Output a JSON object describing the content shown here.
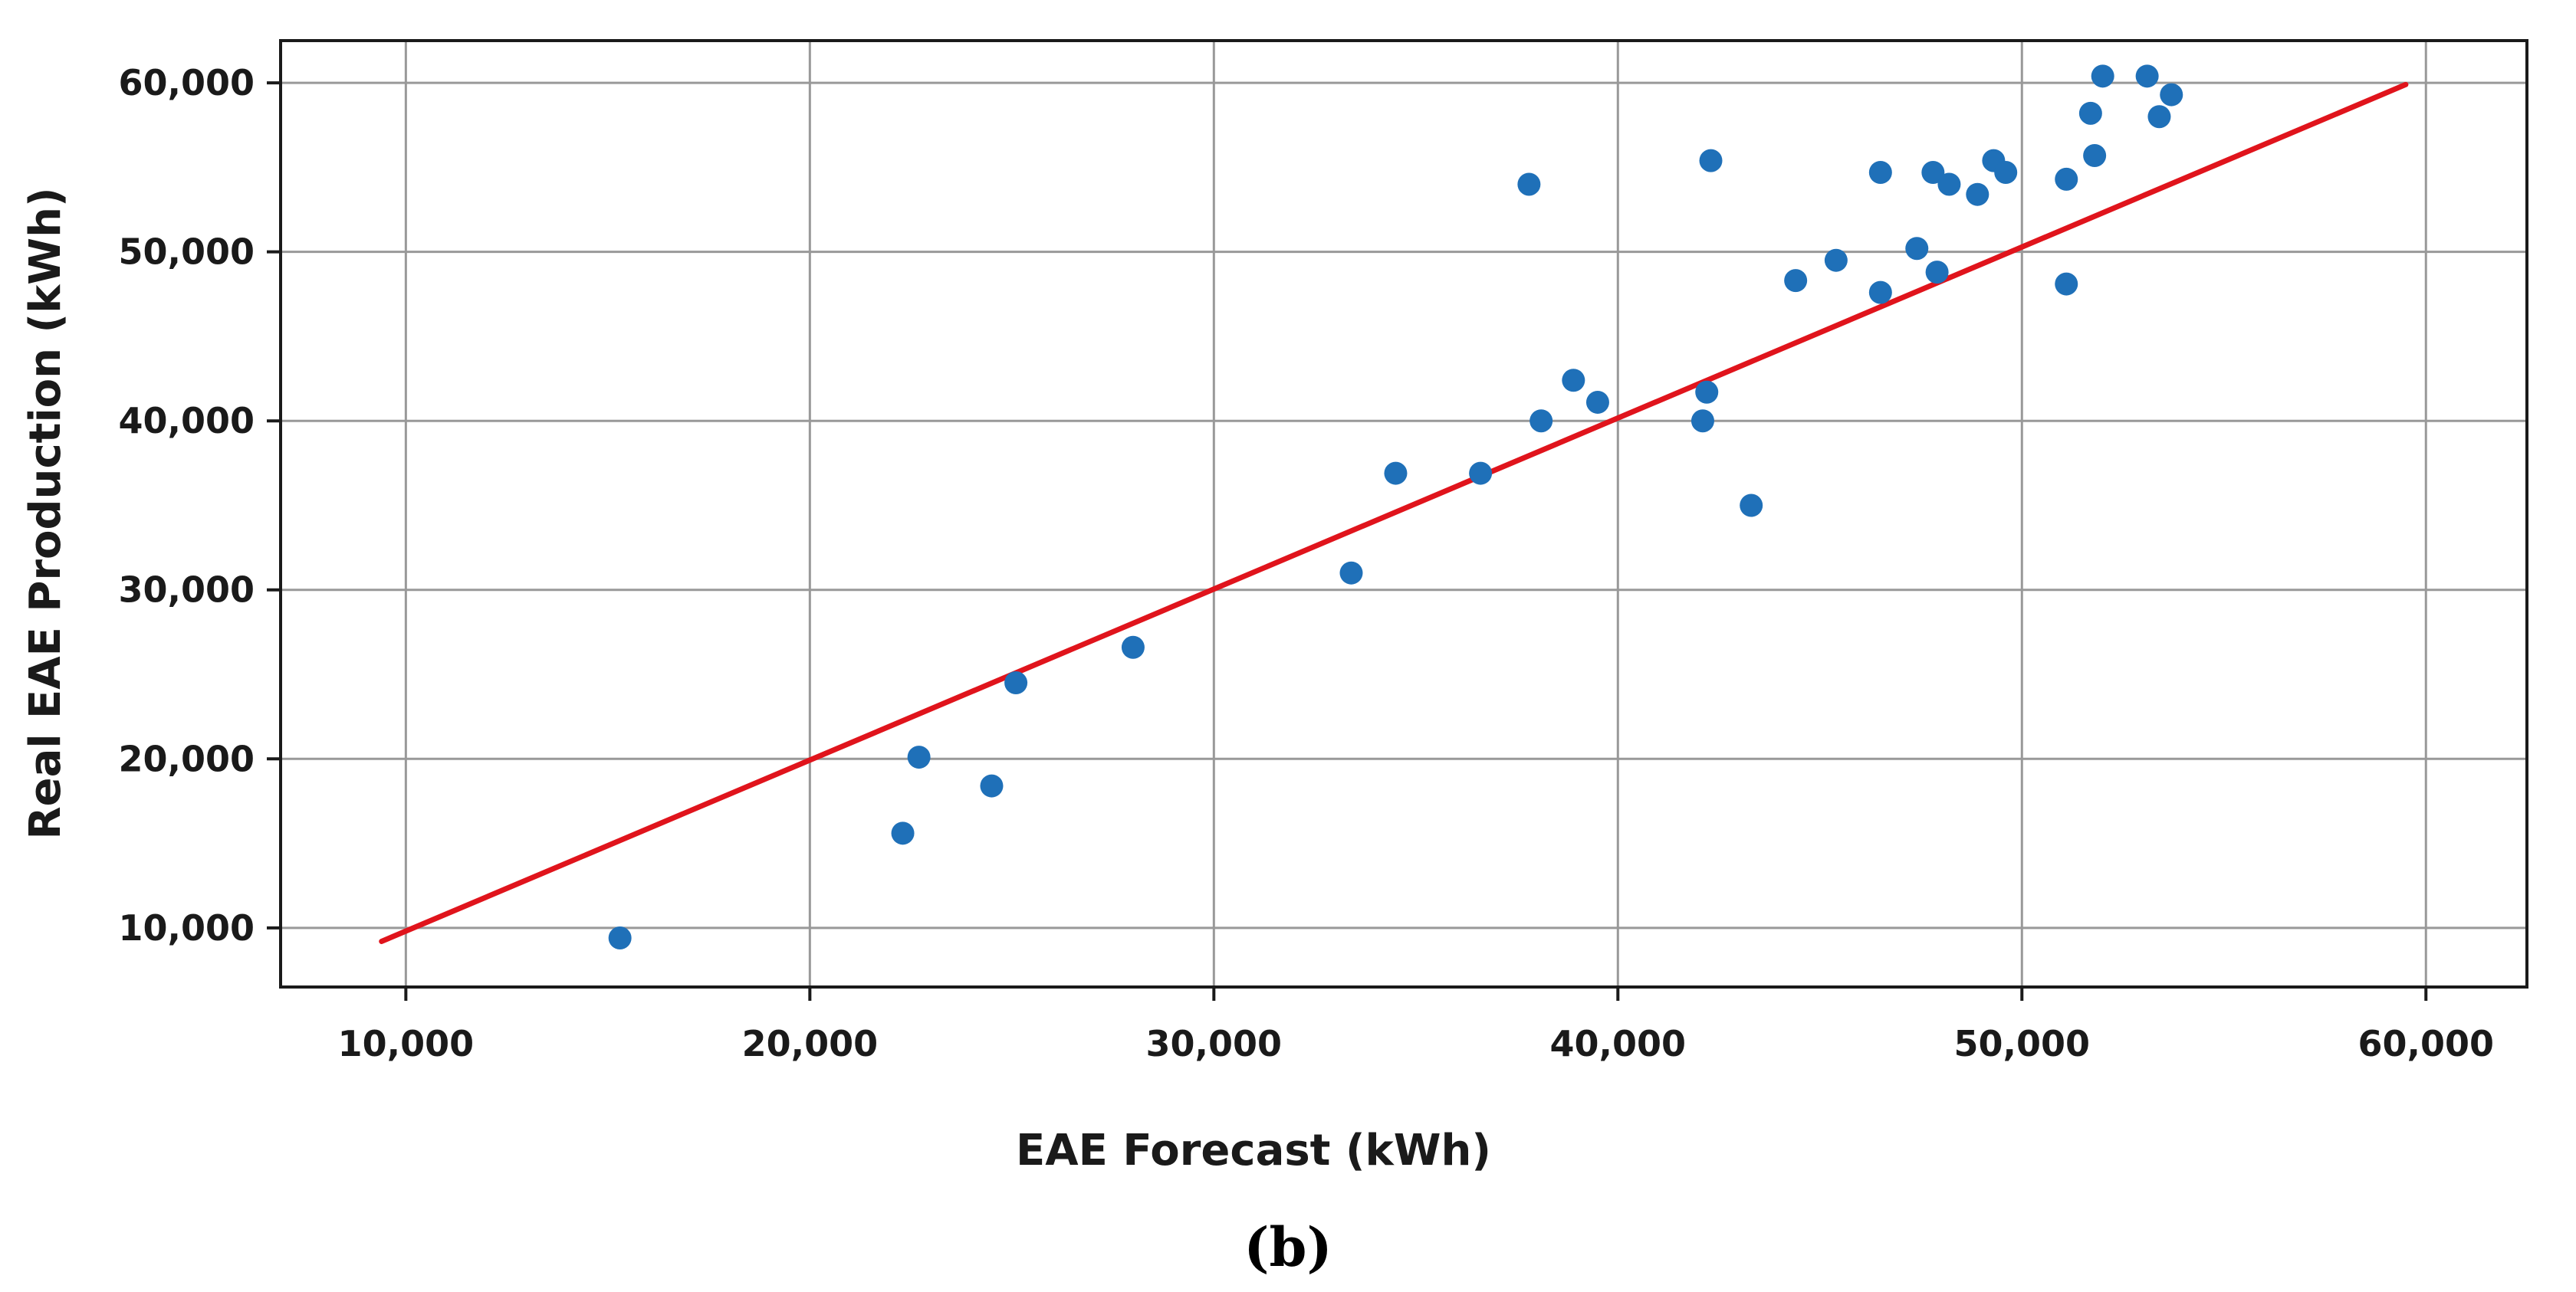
{
  "chart_data": {
    "type": "scatter",
    "title": "",
    "xlabel": "EAE Forecast (kWh)",
    "ylabel": "Real EAE Production (kWh)",
    "caption": "(b)",
    "xlim": [
      6900,
      62500
    ],
    "ylim": [
      6500,
      62500
    ],
    "x_ticks": [
      10000,
      20000,
      30000,
      40000,
      50000,
      60000
    ],
    "x_tick_labels": [
      "10,000",
      "20,000",
      "30,000",
      "40,000",
      "50,000",
      "60,000"
    ],
    "y_ticks": [
      10000,
      20000,
      30000,
      40000,
      50000,
      60000
    ],
    "y_tick_labels": [
      "10,000",
      "20,000",
      "30,000",
      "40,000",
      "50,000",
      "60,000"
    ],
    "grid": true,
    "colors": {
      "points": "#1f70b8",
      "fit_line": "#e0141c",
      "grid": "#999999",
      "frame": "#1a1a1a"
    },
    "series": [
      {
        "name": "observations",
        "points": [
          [
            15300,
            9400
          ],
          [
            22300,
            15600
          ],
          [
            22700,
            20100
          ],
          [
            24500,
            18400
          ],
          [
            25100,
            24500
          ],
          [
            28000,
            26600
          ],
          [
            33400,
            31000
          ],
          [
            34500,
            36900
          ],
          [
            36600,
            36900
          ],
          [
            37800,
            54000
          ],
          [
            38100,
            40000
          ],
          [
            38900,
            42400
          ],
          [
            39500,
            41100
          ],
          [
            42100,
            40000
          ],
          [
            42200,
            41700
          ],
          [
            42300,
            55400
          ],
          [
            43300,
            35000
          ],
          [
            44400,
            48300
          ],
          [
            45400,
            49500
          ],
          [
            46500,
            54700
          ],
          [
            46500,
            47600
          ],
          [
            47400,
            50200
          ],
          [
            47800,
            54700
          ],
          [
            47900,
            48800
          ],
          [
            48200,
            54000
          ],
          [
            48900,
            53400
          ],
          [
            49300,
            55400
          ],
          [
            49600,
            54700
          ],
          [
            51100,
            48100
          ],
          [
            51100,
            54300
          ],
          [
            51700,
            58200
          ],
          [
            51800,
            55700
          ],
          [
            52000,
            60400
          ],
          [
            53100,
            60400
          ],
          [
            53400,
            58000
          ],
          [
            53700,
            59300
          ]
        ]
      },
      {
        "name": "fit",
        "line": [
          [
            9400,
            9200
          ],
          [
            59500,
            59900
          ]
        ]
      }
    ]
  }
}
